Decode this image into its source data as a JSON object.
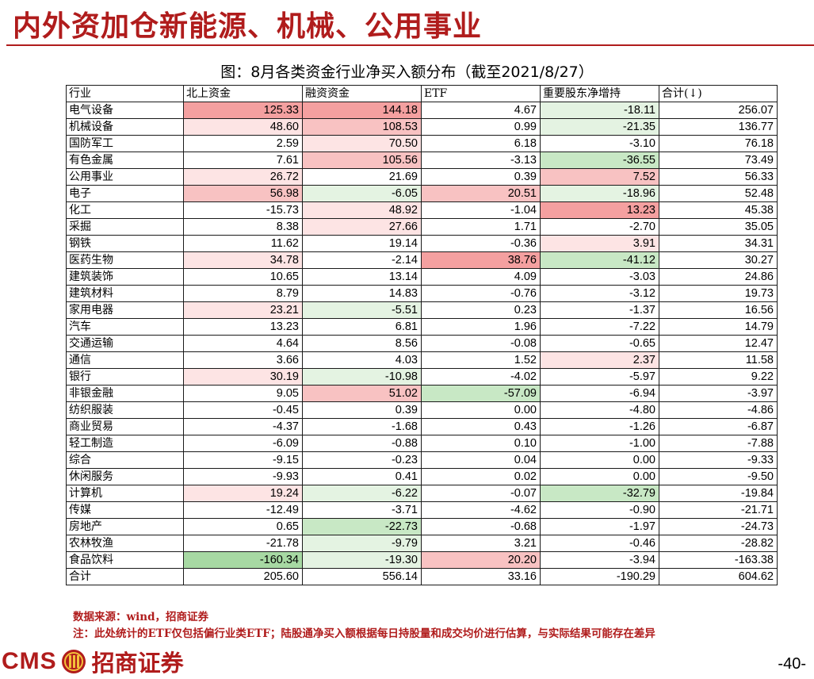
{
  "header": {
    "title": "内外资加仓新能源、机械、公用事业",
    "table_caption": "图：8月各类资金行业净买入额分布（截至2021/8/27）"
  },
  "table": {
    "columns": [
      "行业",
      "北上资金",
      "融资资金",
      "ETF",
      "重要股东净增持",
      "合计(↓)"
    ],
    "rows": [
      {
        "name": "电气设备",
        "v": [
          "125.33",
          "144.18",
          "4.67",
          "-18.11",
          "256.07"
        ],
        "c": [
          "r3",
          "r3",
          "",
          "g1",
          ""
        ]
      },
      {
        "name": "机械设备",
        "v": [
          "48.60",
          "108.53",
          "0.99",
          "-21.35",
          "136.77"
        ],
        "c": [
          "r1",
          "r2",
          "",
          "g1",
          ""
        ]
      },
      {
        "name": "国防军工",
        "v": [
          "2.59",
          "70.50",
          "6.18",
          "-3.10",
          "76.18"
        ],
        "c": [
          "",
          "r1",
          "",
          "",
          ""
        ]
      },
      {
        "name": "有色金属",
        "v": [
          "7.61",
          "105.56",
          "-3.13",
          "-36.55",
          "73.49"
        ],
        "c": [
          "",
          "r2",
          "",
          "g2",
          ""
        ]
      },
      {
        "name": "公用事业",
        "v": [
          "26.72",
          "21.69",
          "0.39",
          "7.52",
          "56.33"
        ],
        "c": [
          "r1",
          "",
          "",
          "r2",
          ""
        ]
      },
      {
        "name": "电子",
        "v": [
          "56.98",
          "-6.05",
          "20.51",
          "-18.96",
          "52.48"
        ],
        "c": [
          "r2",
          "g1",
          "r2",
          "g1",
          ""
        ]
      },
      {
        "name": "化工",
        "v": [
          "-15.73",
          "48.92",
          "-1.04",
          "13.23",
          "45.38"
        ],
        "c": [
          "",
          "r1",
          "",
          "r3",
          ""
        ]
      },
      {
        "name": "采掘",
        "v": [
          "8.38",
          "27.66",
          "1.71",
          "-2.70",
          "35.05"
        ],
        "c": [
          "",
          "r1",
          "",
          "",
          ""
        ]
      },
      {
        "name": "钢铁",
        "v": [
          "11.62",
          "19.14",
          "-0.36",
          "3.91",
          "34.31"
        ],
        "c": [
          "",
          "",
          "",
          "r1",
          ""
        ]
      },
      {
        "name": "医药生物",
        "v": [
          "34.78",
          "-2.14",
          "38.76",
          "-41.12",
          "30.27"
        ],
        "c": [
          "r1",
          "",
          "r3",
          "g2",
          ""
        ]
      },
      {
        "name": "建筑装饰",
        "v": [
          "10.65",
          "13.14",
          "4.09",
          "-3.03",
          "24.86"
        ],
        "c": [
          "",
          "",
          "",
          "",
          ""
        ]
      },
      {
        "name": "建筑材料",
        "v": [
          "8.79",
          "14.83",
          "-0.76",
          "-3.12",
          "19.73"
        ],
        "c": [
          "",
          "",
          "",
          "",
          ""
        ]
      },
      {
        "name": "家用电器",
        "v": [
          "23.21",
          "-5.51",
          "0.23",
          "-1.37",
          "16.56"
        ],
        "c": [
          "r1",
          "g1",
          "",
          "",
          ""
        ]
      },
      {
        "name": "汽车",
        "v": [
          "13.23",
          "6.81",
          "1.96",
          "-7.22",
          "14.79"
        ],
        "c": [
          "",
          "",
          "",
          "",
          ""
        ]
      },
      {
        "name": "交通运输",
        "v": [
          "4.64",
          "8.56",
          "-0.08",
          "-0.65",
          "12.47"
        ],
        "c": [
          "",
          "",
          "",
          "",
          ""
        ]
      },
      {
        "name": "通信",
        "v": [
          "3.66",
          "4.03",
          "1.52",
          "2.37",
          "11.58"
        ],
        "c": [
          "",
          "",
          "",
          "r1",
          ""
        ]
      },
      {
        "name": "银行",
        "v": [
          "30.19",
          "-10.98",
          "-4.02",
          "-5.97",
          "9.22"
        ],
        "c": [
          "r1",
          "g1",
          "",
          "",
          ""
        ]
      },
      {
        "name": "非银金融",
        "v": [
          "9.05",
          "51.02",
          "-57.09",
          "-6.94",
          "-3.97"
        ],
        "c": [
          "",
          "r2",
          "g2",
          "",
          ""
        ]
      },
      {
        "name": "纺织服装",
        "v": [
          "-0.45",
          "0.39",
          "0.00",
          "-4.80",
          "-4.86"
        ],
        "c": [
          "",
          "",
          "",
          "",
          ""
        ]
      },
      {
        "name": "商业贸易",
        "v": [
          "-4.37",
          "-1.68",
          "0.43",
          "-1.26",
          "-6.87"
        ],
        "c": [
          "",
          "",
          "",
          "",
          ""
        ]
      },
      {
        "name": "轻工制造",
        "v": [
          "-6.09",
          "-0.88",
          "0.10",
          "-1.00",
          "-7.88"
        ],
        "c": [
          "",
          "",
          "",
          "",
          ""
        ]
      },
      {
        "name": "综合",
        "v": [
          "-9.15",
          "-0.23",
          "0.04",
          "0.00",
          "-9.33"
        ],
        "c": [
          "",
          "",
          "",
          "",
          ""
        ]
      },
      {
        "name": "休闲服务",
        "v": [
          "-9.93",
          "0.41",
          "0.02",
          "0.00",
          "-9.50"
        ],
        "c": [
          "",
          "",
          "",
          "",
          ""
        ]
      },
      {
        "name": "计算机",
        "v": [
          "19.24",
          "-6.22",
          "-0.07",
          "-32.79",
          "-19.84"
        ],
        "c": [
          "r1",
          "g1",
          "",
          "g2",
          ""
        ]
      },
      {
        "name": "传媒",
        "v": [
          "-12.49",
          "-3.71",
          "-4.62",
          "-0.90",
          "-21.71"
        ],
        "c": [
          "",
          "",
          "",
          "",
          ""
        ]
      },
      {
        "name": "房地产",
        "v": [
          "0.65",
          "-22.73",
          "-0.68",
          "-1.97",
          "-24.73"
        ],
        "c": [
          "",
          "g2",
          "",
          "",
          ""
        ]
      },
      {
        "name": "农林牧渔",
        "v": [
          "-21.78",
          "-9.79",
          "3.21",
          "-0.46",
          "-28.82"
        ],
        "c": [
          "",
          "g1",
          "",
          "",
          ""
        ]
      },
      {
        "name": "食品饮料",
        "v": [
          "-160.34",
          "-19.30",
          "20.20",
          "-3.94",
          "-163.38"
        ],
        "c": [
          "g3",
          "g1",
          "r2",
          "",
          ""
        ]
      }
    ],
    "total": {
      "name": "合计",
      "v": [
        "205.60",
        "556.14",
        "33.16",
        "-190.29",
        "604.62"
      ]
    }
  },
  "notes": {
    "source": "数据来源：wind，招商证券",
    "footnote": "注：此处统计的ETF仅包括偏行业类ETF；陆股通净买入额根据每日持股量和成交均价进行估算，与实际结果可能存在差异"
  },
  "footer": {
    "logo_latin": "CMS",
    "logo_cn": "招商证券",
    "page_number": "-40-"
  },
  "colors": {
    "brand_red": "#b01c1c",
    "positive_strong": "#f4a0a0",
    "positive_mid": "#f8c2c2",
    "positive_light": "#fde4e4",
    "negative_light": "#e4f3e2",
    "negative_mid": "#c8e8c5",
    "negative_strong": "#a7d9a3"
  }
}
